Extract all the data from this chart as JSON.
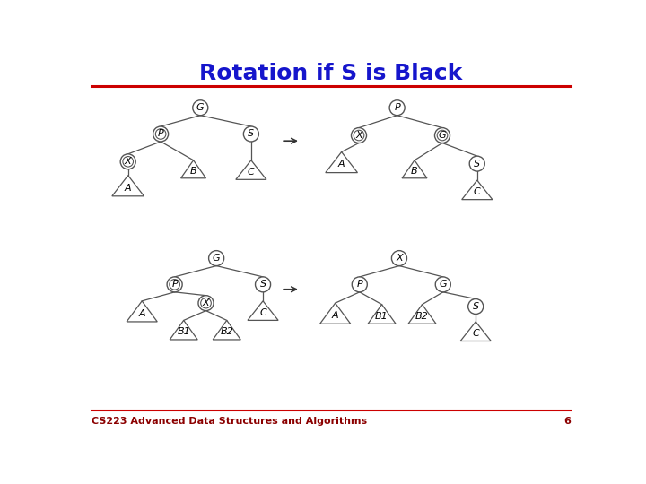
{
  "title": "Rotation if S is Black",
  "title_color": "#1515CC",
  "title_fontsize": 18,
  "footer_text": "CS223 Advanced Data Structures and Algorithms",
  "footer_page": "6",
  "footer_color": "#8B0000",
  "red_line_color": "#CC0000",
  "node_edge_color": "#555555",
  "node_fill_color": "#ffffff",
  "tree_line_color": "#555555",
  "triangle_fill": "#ffffff",
  "triangle_edge": "#555555",
  "background": "#ffffff",
  "arrow_color": "#333333"
}
